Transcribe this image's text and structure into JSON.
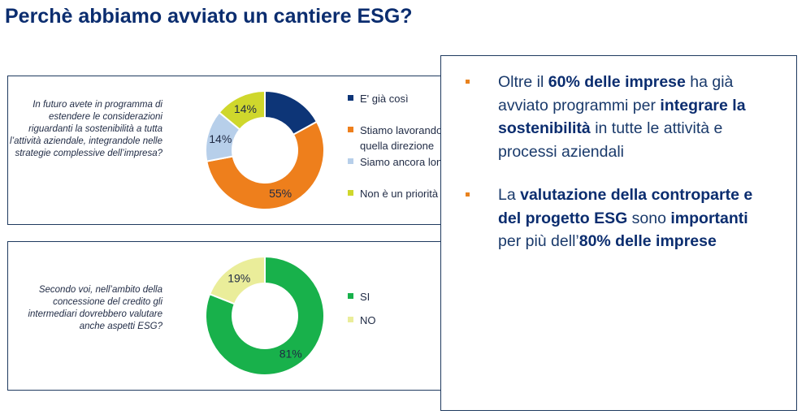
{
  "title": "Perchè abbiamo avviato un cantiere ESG?",
  "chart_data": [
    {
      "type": "pie",
      "question": "In futuro avete in programma di estendere le considerazioni riguardanti la sostenibilità a tutta l’attività aziendale, integrandole nelle strategie complessive dell’impresa?",
      "categories": [
        "E' già così",
        "Stiamo lavorando in quella direzione",
        "Siamo ancora lontani",
        "Non è un priorità"
      ],
      "values": [
        17,
        55,
        14,
        14
      ],
      "labels": [
        "",
        "55%",
        "14%",
        "14%"
      ],
      "colors": [
        "#0d3577",
        "#ee7f1c",
        "#b7cfea",
        "#cfd72c"
      ],
      "legend_lines": [
        [
          "E' già così"
        ],
        [
          "Stiamo lavorando in",
          "quella direzione"
        ],
        [
          "Siamo ancora lontani"
        ],
        [
          "Non è un priorità"
        ]
      ],
      "legend_position": "right"
    },
    {
      "type": "pie",
      "question": "Secondo voi, nell’ambito della concessione del credito gli intermediari dovrebbero valutare anche aspetti ESG?",
      "categories": [
        "SI",
        "NO"
      ],
      "values": [
        81,
        19
      ],
      "labels": [
        "81%",
        "19%"
      ],
      "colors": [
        "#18b14b",
        "#eaed9a"
      ],
      "legend_lines": [
        [
          "SI"
        ],
        [
          "NO"
        ]
      ],
      "legend_position": "right"
    }
  ],
  "bullets": [
    [
      {
        "t": "Oltre il ",
        "b": false
      },
      {
        "t": "60% delle imprese",
        "b": true
      },
      {
        "t": " ha già avviato programmi per ",
        "b": false
      },
      {
        "t": "integrare la sostenibilità",
        "b": true
      },
      {
        "t": " in tutte le attività e processi aziendali",
        "b": false
      }
    ],
    [
      {
        "t": "La ",
        "b": false
      },
      {
        "t": "valutazione della controparte e del progetto ESG",
        "b": true
      },
      {
        "t": " sono ",
        "b": false
      },
      {
        "t": "importanti",
        "b": true
      },
      {
        "t": " per più dell’",
        "b": false
      },
      {
        "t": "80% delle imprese",
        "b": true
      }
    ]
  ],
  "bullet_color": "#e8821e"
}
